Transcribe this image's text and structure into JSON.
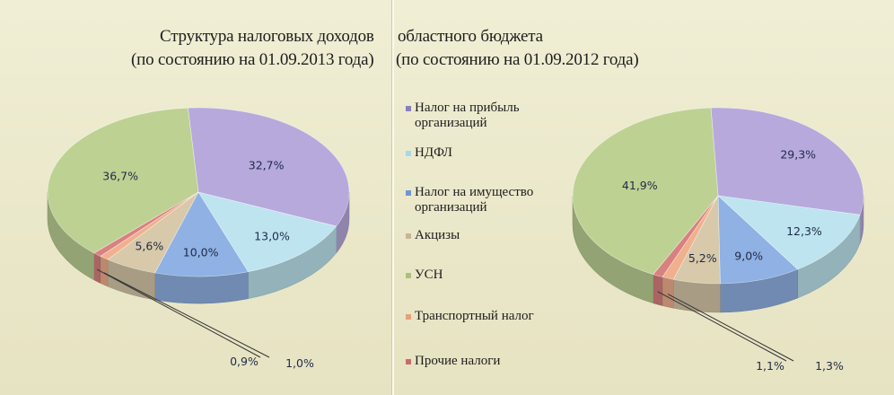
{
  "titles": {
    "left_line1": "Структура налоговых доходов",
    "left_line2": "(по состоянию на 01.09.2013  года)",
    "right_line1": "областного бюджета",
    "right_line2": "(по состоянию на 01.09.2012  года)"
  },
  "legend": [
    {
      "label": "Налог на прибыль организаций",
      "color": "#8a7fbd"
    },
    {
      "label": "НДФЛ",
      "color": "#a6d9ea"
    },
    {
      "label": "Налог на имущество организаций",
      "color": "#6f97d6"
    },
    {
      "label": "Акцизы",
      "color": "#c8b693"
    },
    {
      "label": "УСН",
      "color": "#a7c27a"
    },
    {
      "label": "Транспортный налог",
      "color": "#e8a07a"
    },
    {
      "label": "Прочие налоги",
      "color": "#cc6a6a"
    }
  ],
  "chart_data": [
    {
      "type": "pie",
      "title": "(по состоянию на 01.09.2013  года)",
      "slices": [
        {
          "label": "Налог на прибыль организаций",
          "value": 32.7,
          "text": "32,7%",
          "color": "#b7a9dc"
        },
        {
          "label": "НДФЛ",
          "value": 13.0,
          "text": "13,0%",
          "color": "#bde4ef"
        },
        {
          "label": "Налог на имущество организаций",
          "value": 10.0,
          "text": "10,0%",
          "color": "#8fb1e3"
        },
        {
          "label": "Акцизы",
          "value": 5.6,
          "text": "5,6%",
          "color": "#d7c9a9"
        },
        {
          "label": "Транспортный налог",
          "value": 1.0,
          "text": "1,0%",
          "color": "#f0b08e"
        },
        {
          "label": "Прочие налоги",
          "value": 0.9,
          "text": "0,9%",
          "color": "#d98080"
        },
        {
          "label": "УСН",
          "value": 36.7,
          "text": "36,7%",
          "color": "#bdd193"
        }
      ]
    },
    {
      "type": "pie",
      "title": "(по состоянию на 01.09.2012  года)",
      "slices": [
        {
          "label": "Налог на прибыль организаций",
          "value": 29.3,
          "text": "29,3%",
          "color": "#b7a9dc"
        },
        {
          "label": "НДФЛ",
          "value": 12.3,
          "text": "12,3%",
          "color": "#bde4ef"
        },
        {
          "label": "Налог на имущество организаций",
          "value": 9.0,
          "text": "9,0%",
          "color": "#8fb1e3"
        },
        {
          "label": "Акцизы",
          "value": 5.2,
          "text": "5,2%",
          "color": "#d7c9a9"
        },
        {
          "label": "Транспортный налог",
          "value": 1.3,
          "text": "1,3%",
          "color": "#f0b08e"
        },
        {
          "label": "Прочие налоги",
          "value": 1.1,
          "text": "1,1%",
          "color": "#d98080"
        },
        {
          "label": "УСН",
          "value": 41.9,
          "text": "41,9%",
          "color": "#bdd193"
        }
      ]
    }
  ]
}
